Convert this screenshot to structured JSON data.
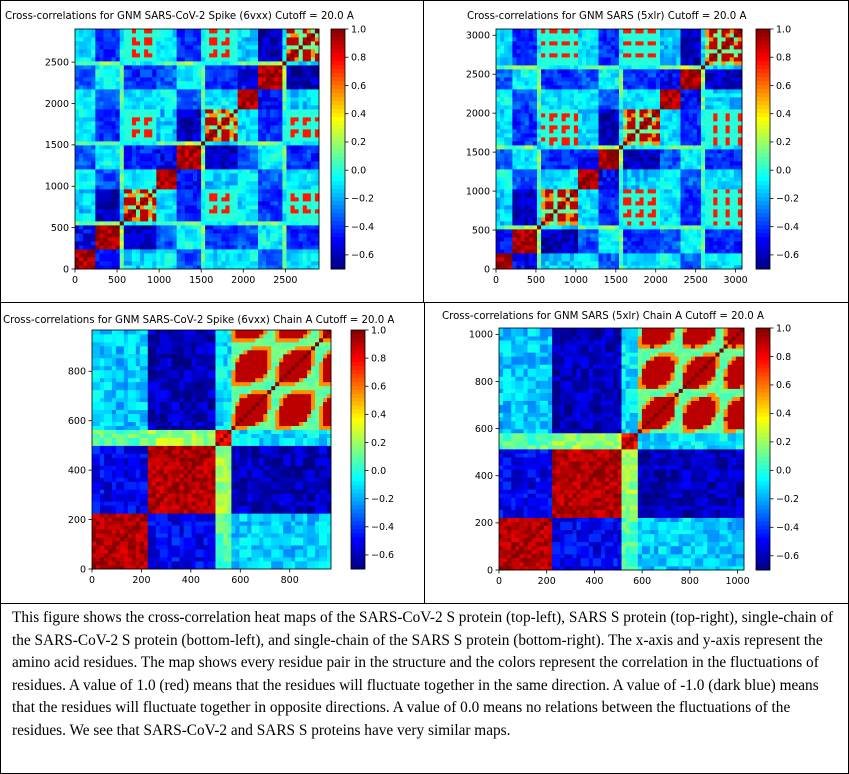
{
  "chart_data": [
    {
      "type": "heatmap",
      "title": "Cross-correlations for GNM SARS-CoV-2 Spike (6vxx) Cutoff = 20.0 A",
      "x_ticks": [
        0,
        500,
        1000,
        1500,
        2000,
        2500
      ],
      "y_ticks": [
        0,
        500,
        1000,
        1500,
        2000,
        2500
      ],
      "xlim": [
        0,
        2900
      ],
      "ylim": [
        0,
        2900
      ],
      "colorbar_ticks": [
        1.0,
        0.8,
        0.6,
        0.4,
        0.2,
        0.0,
        -0.2,
        -0.4,
        -0.6
      ],
      "colorbar_range": [
        -0.7,
        1.0
      ],
      "colormap": "jet",
      "chain_boundaries": [
        0,
        230,
        520,
        560,
        967,
        1200,
        1490,
        1530,
        1934,
        2170,
        2460,
        2500,
        2900
      ]
    },
    {
      "type": "heatmap",
      "title": "Cross-correlations for GNM SARS (5xlr) Cutoff = 20.0 A",
      "x_ticks": [
        0,
        500,
        1000,
        1500,
        2000,
        2500,
        3000
      ],
      "y_ticks": [
        0,
        500,
        1000,
        1500,
        2000,
        2500,
        3000
      ],
      "xlim": [
        0,
        3080
      ],
      "ylim": [
        0,
        3080
      ],
      "colorbar_ticks": [
        1.0,
        0.8,
        0.6,
        0.4,
        0.2,
        0.0,
        -0.2,
        -0.4,
        -0.6
      ],
      "colorbar_range": [
        -0.7,
        1.0
      ],
      "colormap": "jet",
      "chain_boundaries": [
        0,
        230,
        530,
        570,
        1027,
        1260,
        1560,
        1600,
        2054,
        2290,
        2590,
        2630,
        3080
      ]
    },
    {
      "type": "heatmap",
      "title": "Cross-correlations for GNM SARS-CoV-2 Spike (6vxx) Chain A Cutoff = 20.0 A",
      "x_ticks": [
        0,
        200,
        400,
        600,
        800
      ],
      "y_ticks": [
        0,
        200,
        400,
        600,
        800
      ],
      "xlim": [
        0,
        967
      ],
      "ylim": [
        0,
        967
      ],
      "colorbar_ticks": [
        1.0,
        0.8,
        0.6,
        0.4,
        0.2,
        0.0,
        -0.2,
        -0.4,
        -0.6
      ],
      "colorbar_range": [
        -0.7,
        1.0
      ],
      "colormap": "jet",
      "domain_boundaries": [
        0,
        230,
        500,
        560,
        967
      ]
    },
    {
      "type": "heatmap",
      "title": "Cross-correlations for GNM SARS (5xlr) Chain A Cutoff = 20.0 A",
      "x_ticks": [
        0,
        200,
        400,
        600,
        800,
        1000
      ],
      "y_ticks": [
        0,
        200,
        400,
        600,
        800,
        1000
      ],
      "xlim": [
        0,
        1027
      ],
      "ylim": [
        0,
        1027
      ],
      "colorbar_ticks": [
        1.0,
        0.8,
        0.6,
        0.4,
        0.2,
        0.0,
        -0.2,
        -0.4,
        -0.6
      ],
      "colorbar_range": [
        -0.7,
        1.0
      ],
      "colormap": "jet",
      "domain_boundaries": [
        0,
        230,
        520,
        580,
        1027
      ]
    }
  ],
  "caption": "This figure shows the cross-correlation heat maps of the SARS-CoV-2 S protein (top-left), SARS S protein (top-right), single-chain of the SARS-CoV-2 S protein (bottom-left), and single-chain of the SARS S protein (bottom-right). The x-axis and y-axis represent the amino acid residues. The map shows every residue pair in the structure and the colors represent the correlation in the fluctuations of residues. A value of 1.0 (red) means that the residues will fluctuate together in the same direction. A value of -1.0 (dark blue) means that the residues will fluctuate together in opposite directions. A value of 0.0 means no relations between the fluctuations of the residues. We see that SARS-CoV-2 and SARS S proteins have very similar maps."
}
